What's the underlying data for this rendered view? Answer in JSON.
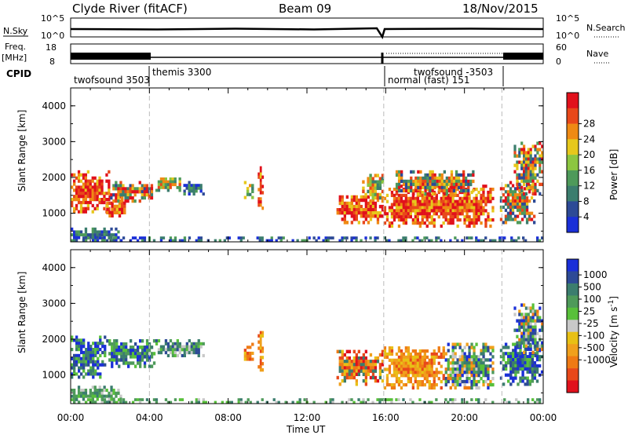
{
  "header": {
    "title": "Clyde River (fitACF)",
    "beam": "Beam 09",
    "date": "18/Nov/2015"
  },
  "aux_panels": {
    "nsky_label": "N.Sky",
    "nsky_ticks": [
      "10^5",
      "10^0"
    ],
    "nsearch_label": "N.Search",
    "nsearch_ticks": [
      "10^5",
      "10^0"
    ],
    "freq_label_1": "Freq.",
    "freq_label_2": "[MHz]",
    "freq_ticks": [
      "18",
      "8"
    ],
    "nave_label": "Nave",
    "nave_ticks": [
      "60",
      "0"
    ],
    "cpid_label": "CPID",
    "cpid_entries": [
      "twofsound 3503",
      "themis 3300",
      "normal (fast) 151",
      "twofsound -3503"
    ]
  },
  "chart_data": [
    {
      "type": "heatmap",
      "name": "power",
      "ylabel": "Slant Range [km]",
      "y_ticks": [
        "1000",
        "2000",
        "3000",
        "4000"
      ],
      "ylim": [
        200,
        4500
      ],
      "x_ticks": [
        "00:00",
        "04:00",
        "08:00",
        "12:00",
        "16:00",
        "20:00",
        "00:00"
      ],
      "xlim_hours": [
        0,
        24
      ],
      "mode_changes_hours": [
        4.0,
        15.9,
        21.9
      ],
      "colorbar": {
        "label": "Power [dB]",
        "ticks": [
          "4",
          "8",
          "12",
          "16",
          "20",
          "24",
          "28"
        ],
        "range": [
          0,
          30
        ],
        "colors": [
          "#1a2fd8",
          "#2d4a96",
          "#3b7d6e",
          "#4e9a5a",
          "#8cc640",
          "#e6c81c",
          "#ef8a14",
          "#e8481a",
          "#e1111c"
        ]
      },
      "regions": [
        {
          "t": [
            0.0,
            2.0
          ],
          "r": [
            1000,
            2200
          ],
          "level": "high"
        },
        {
          "t": [
            1.8,
            2.8
          ],
          "r": [
            800,
            1500
          ],
          "level": "high"
        },
        {
          "t": [
            2.0,
            4.3
          ],
          "r": [
            1300,
            1900
          ],
          "level": "mixed"
        },
        {
          "t": [
            4.3,
            5.6
          ],
          "r": [
            1600,
            2000
          ],
          "level": "medium"
        },
        {
          "t": [
            5.6,
            6.8
          ],
          "r": [
            1500,
            1900
          ],
          "level": "low"
        },
        {
          "t": [
            0.0,
            2.6
          ],
          "r": [
            200,
            600
          ],
          "level": "low"
        },
        {
          "t": [
            9.5,
            9.8
          ],
          "r": [
            1100,
            2400
          ],
          "level": "high"
        },
        {
          "t": [
            8.8,
            9.3
          ],
          "r": [
            1400,
            1900
          ],
          "level": "medium"
        },
        {
          "t": [
            13.5,
            15.9
          ],
          "r": [
            700,
            1500
          ],
          "level": "high"
        },
        {
          "t": [
            14.8,
            15.9
          ],
          "r": [
            1300,
            2100
          ],
          "level": "medium"
        },
        {
          "t": [
            15.9,
            21.5
          ],
          "r": [
            600,
            1800
          ],
          "level": "high"
        },
        {
          "t": [
            16.5,
            20.5
          ],
          "r": [
            1500,
            2200
          ],
          "level": "mixed"
        },
        {
          "t": [
            21.8,
            23.6
          ],
          "r": [
            700,
            1900
          ],
          "level": "mixed"
        },
        {
          "t": [
            22.5,
            24.0
          ],
          "r": [
            1500,
            3000
          ],
          "level": "mixed"
        },
        {
          "t": [
            0.0,
            24.0
          ],
          "r": [
            200,
            350
          ],
          "level": "low"
        }
      ]
    },
    {
      "type": "heatmap",
      "name": "velocity",
      "ylabel": "Slant Range [km]",
      "y_ticks": [
        "1000",
        "2000",
        "3000",
        "4000"
      ],
      "ylim": [
        200,
        4500
      ],
      "x_ticks": [
        "00:00",
        "04:00",
        "08:00",
        "12:00",
        "16:00",
        "20:00",
        "00:00"
      ],
      "xlim_hours": [
        0,
        24
      ],
      "xlabel": "Time UT",
      "mode_changes_hours": [
        4.0,
        15.9,
        21.9
      ],
      "colorbar": {
        "label": "Velocity [m s^-1]",
        "ticks": [
          "1000",
          "500",
          "100",
          "25",
          "-25",
          "-100",
          "-500",
          "-1000"
        ],
        "colors": [
          "#1a2fd8",
          "#2d4a96",
          "#3b7d6e",
          "#4e9a5a",
          "#58c03a",
          "#c8c8c8",
          "#e8c014",
          "#f0a01c",
          "#ef7a14",
          "#e8481a",
          "#e1111c"
        ]
      },
      "regions": [
        {
          "t": [
            0.0,
            1.8
          ],
          "r": [
            900,
            2100
          ],
          "level": "pos_high"
        },
        {
          "t": [
            1.8,
            4.3
          ],
          "r": [
            1200,
            2000
          ],
          "level": "pos_mid"
        },
        {
          "t": [
            4.3,
            6.8
          ],
          "r": [
            1500,
            2000
          ],
          "level": "pos_mixed"
        },
        {
          "t": [
            0.0,
            2.6
          ],
          "r": [
            200,
            700
          ],
          "level": "pos_low"
        },
        {
          "t": [
            9.5,
            9.8
          ],
          "r": [
            1100,
            2400
          ],
          "level": "neg"
        },
        {
          "t": [
            8.8,
            9.3
          ],
          "r": [
            1400,
            1900
          ],
          "level": "neg"
        },
        {
          "t": [
            13.5,
            15.9
          ],
          "r": [
            700,
            1700
          ],
          "level": "neg_high"
        },
        {
          "t": [
            15.9,
            19.0
          ],
          "r": [
            600,
            1800
          ],
          "level": "neg"
        },
        {
          "t": [
            19.0,
            21.5
          ],
          "r": [
            600,
            1900
          ],
          "level": "mixed"
        },
        {
          "t": [
            21.8,
            24.0
          ],
          "r": [
            700,
            1900
          ],
          "level": "pos_high"
        },
        {
          "t": [
            22.5,
            24.0
          ],
          "r": [
            1500,
            3000
          ],
          "level": "mixed"
        },
        {
          "t": [
            0.0,
            24.0
          ],
          "r": [
            200,
            350
          ],
          "level": "pos_low"
        }
      ]
    }
  ]
}
